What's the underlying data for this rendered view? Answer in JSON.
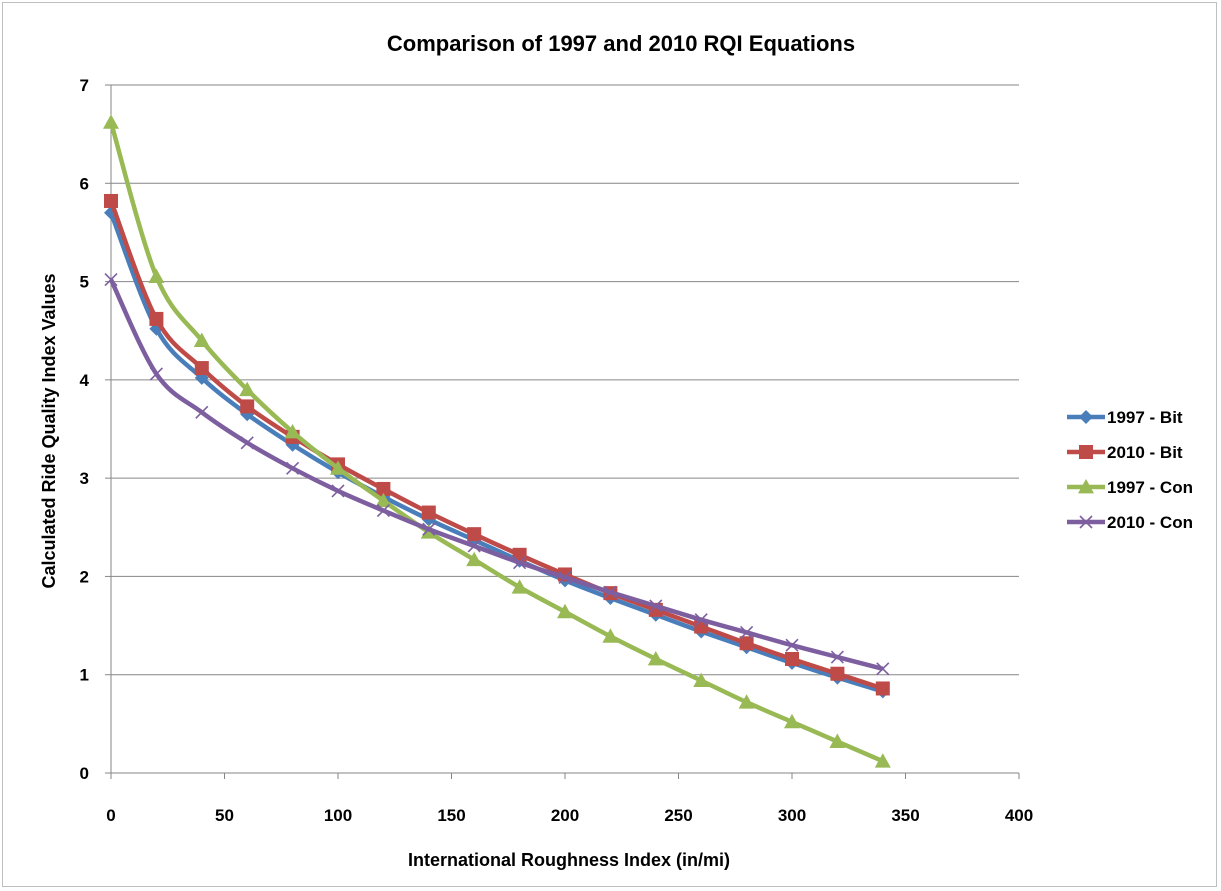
{
  "chart_data": {
    "type": "line",
    "title": "Comparison of 1997 and 2010 RQI Equations",
    "xlabel": "International Roughness Index (in/mi)",
    "ylabel": "Calculated Ride Quality Index Values",
    "xlim": [
      0,
      400
    ],
    "ylim": [
      0,
      7
    ],
    "xticks": [
      0,
      50,
      100,
      150,
      200,
      250,
      300,
      350,
      400
    ],
    "yticks": [
      0,
      1,
      2,
      3,
      4,
      5,
      6,
      7
    ],
    "grid": "horizontal",
    "legend_position": "right",
    "x": [
      0,
      20,
      40,
      60,
      80,
      100,
      120,
      140,
      160,
      180,
      200,
      220,
      240,
      260,
      280,
      300,
      320,
      340
    ],
    "series": [
      {
        "name": "1997 - Bit",
        "color": "#4a7ebb",
        "marker": "diamond",
        "values": [
          5.7,
          4.52,
          4.02,
          3.65,
          3.34,
          3.06,
          2.81,
          2.58,
          2.37,
          2.16,
          1.96,
          1.78,
          1.61,
          1.44,
          1.28,
          1.12,
          0.97,
          0.83
        ]
      },
      {
        "name": "2010 - Bit",
        "color": "#be4b48",
        "marker": "square",
        "values": [
          5.82,
          4.62,
          4.12,
          3.73,
          3.42,
          3.14,
          2.89,
          2.65,
          2.43,
          2.22,
          2.02,
          1.83,
          1.66,
          1.49,
          1.32,
          1.16,
          1.01,
          0.86
        ]
      },
      {
        "name": "1997 - Con",
        "color": "#98b954",
        "marker": "triangle",
        "values": [
          6.62,
          5.05,
          4.4,
          3.9,
          3.47,
          3.1,
          2.77,
          2.45,
          2.17,
          1.89,
          1.64,
          1.39,
          1.16,
          0.94,
          0.72,
          0.52,
          0.32,
          0.12
        ]
      },
      {
        "name": "2010 - Con",
        "color": "#7d5fa0",
        "marker": "x",
        "values": [
          5.02,
          4.06,
          3.67,
          3.36,
          3.1,
          2.87,
          2.67,
          2.48,
          2.31,
          2.14,
          1.99,
          1.84,
          1.7,
          1.56,
          1.43,
          1.3,
          1.18,
          1.06
        ]
      }
    ]
  }
}
